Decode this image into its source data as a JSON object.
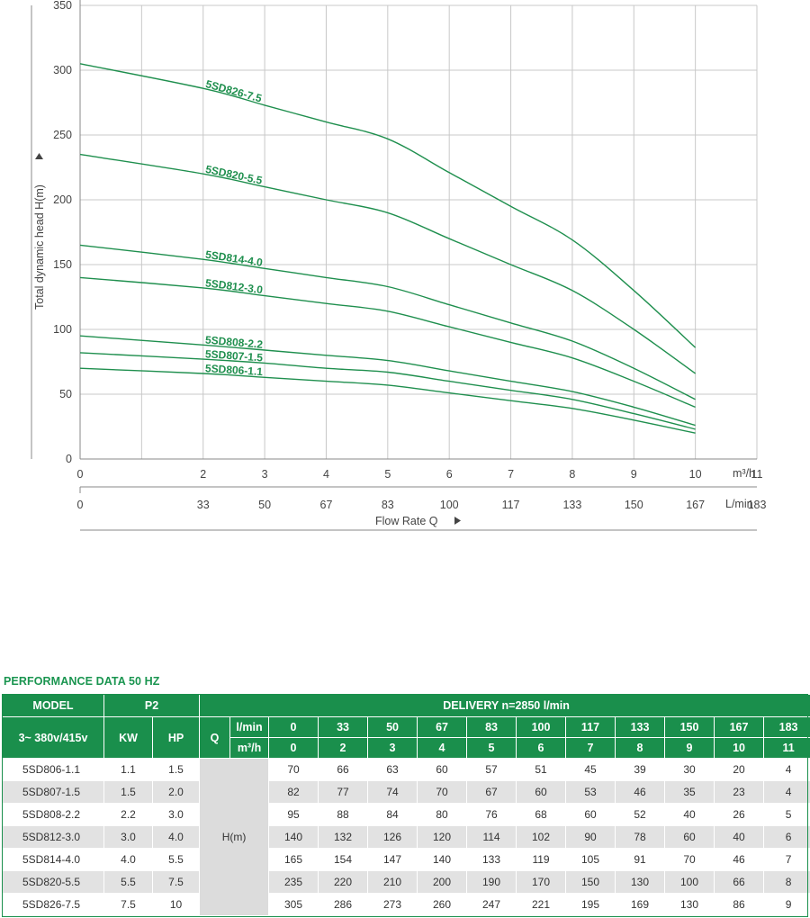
{
  "chart_data": {
    "type": "line",
    "ylabel": "Total dynamic head H(m)",
    "xlabel": "Flow Rate Q",
    "x_unit_primary": "m³/h",
    "x_unit_secondary": "L/min",
    "xlim": [
      0,
      11
    ],
    "ylim": [
      0,
      350
    ],
    "x_ticks": [
      0,
      2,
      3,
      4,
      5,
      6,
      7,
      8,
      9,
      10,
      11
    ],
    "x_ticks_lmin": [
      0,
      33,
      50,
      67,
      83,
      100,
      117,
      133,
      150,
      167,
      183
    ],
    "y_ticks": [
      0,
      50,
      100,
      150,
      200,
      250,
      300,
      350
    ],
    "grid": true,
    "series_color": "#1f8f4e",
    "series": [
      {
        "name": "5SD826-7.5",
        "x": [
          0,
          2,
          3,
          4,
          5,
          6,
          7,
          8,
          9,
          10
        ],
        "values": [
          305,
          286,
          273,
          260,
          247,
          221,
          195,
          169,
          130,
          86
        ]
      },
      {
        "name": "5SD820-5.5",
        "x": [
          0,
          2,
          3,
          4,
          5,
          6,
          7,
          8,
          9,
          10
        ],
        "values": [
          235,
          220,
          210,
          200,
          190,
          170,
          150,
          130,
          100,
          66
        ]
      },
      {
        "name": "5SD814-4.0",
        "x": [
          0,
          2,
          3,
          4,
          5,
          6,
          7,
          8,
          9,
          10
        ],
        "values": [
          165,
          154,
          147,
          140,
          133,
          119,
          105,
          91,
          70,
          46
        ]
      },
      {
        "name": "5SD812-3.0",
        "x": [
          0,
          2,
          3,
          4,
          5,
          6,
          7,
          8,
          9,
          10
        ],
        "values": [
          140,
          132,
          126,
          120,
          114,
          102,
          90,
          78,
          60,
          40
        ]
      },
      {
        "name": "5SD808-2.2",
        "x": [
          0,
          2,
          3,
          4,
          5,
          6,
          7,
          8,
          9,
          10
        ],
        "values": [
          95,
          88,
          84,
          80,
          76,
          68,
          60,
          52,
          40,
          26
        ]
      },
      {
        "name": "5SD807-1.5",
        "x": [
          0,
          2,
          3,
          4,
          5,
          6,
          7,
          8,
          9,
          10
        ],
        "values": [
          82,
          77,
          74,
          70,
          67,
          60,
          53,
          46,
          35,
          23
        ]
      },
      {
        "name": "5SD806-1.1",
        "x": [
          0,
          2,
          3,
          4,
          5,
          6,
          7,
          8,
          9,
          10
        ],
        "values": [
          70,
          66,
          63,
          60,
          57,
          51,
          45,
          39,
          30,
          20
        ]
      }
    ]
  },
  "table": {
    "title": "PERFORMANCE DATA 50 HZ",
    "header": {
      "model": "MODEL",
      "p2": "P2",
      "delivery": "DELIVERY  n=2850 l/min",
      "voltage": "3~ 380v/415v",
      "kw": "KW",
      "hp": "HP",
      "q": "Q",
      "lmin_unit": "l/min",
      "m3h_unit": "m³/h",
      "lmin": [
        "0",
        "33",
        "50",
        "67",
        "83",
        "100",
        "117",
        "133",
        "150",
        "167",
        "183"
      ],
      "m3h": [
        "0",
        "2",
        "3",
        "4",
        "5",
        "6",
        "7",
        "8",
        "9",
        "10",
        "11"
      ]
    },
    "h_label": "H(m)",
    "rows": [
      {
        "model": "5SD806-1.1",
        "kw": "1.1",
        "hp": "1.5",
        "h": [
          "70",
          "66",
          "63",
          "60",
          "57",
          "51",
          "45",
          "39",
          "30",
          "20",
          "4"
        ]
      },
      {
        "model": "5SD807-1.5",
        "kw": "1.5",
        "hp": "2.0",
        "h": [
          "82",
          "77",
          "74",
          "70",
          "67",
          "60",
          "53",
          "46",
          "35",
          "23",
          "4"
        ]
      },
      {
        "model": "5SD808-2.2",
        "kw": "2.2",
        "hp": "3.0",
        "h": [
          "95",
          "88",
          "84",
          "80",
          "76",
          "68",
          "60",
          "52",
          "40",
          "26",
          "5"
        ]
      },
      {
        "model": "5SD812-3.0",
        "kw": "3.0",
        "hp": "4.0",
        "h": [
          "140",
          "132",
          "126",
          "120",
          "114",
          "102",
          "90",
          "78",
          "60",
          "40",
          "6"
        ]
      },
      {
        "model": "5SD814-4.0",
        "kw": "4.0",
        "hp": "5.5",
        "h": [
          "165",
          "154",
          "147",
          "140",
          "133",
          "119",
          "105",
          "91",
          "70",
          "46",
          "7"
        ]
      },
      {
        "model": "5SD820-5.5",
        "kw": "5.5",
        "hp": "7.5",
        "h": [
          "235",
          "220",
          "210",
          "200",
          "190",
          "170",
          "150",
          "130",
          "100",
          "66",
          "8"
        ]
      },
      {
        "model": "5SD826-7.5",
        "kw": "7.5",
        "hp": "10",
        "h": [
          "305",
          "286",
          "273",
          "260",
          "247",
          "221",
          "195",
          "169",
          "130",
          "86",
          "9"
        ]
      }
    ]
  }
}
